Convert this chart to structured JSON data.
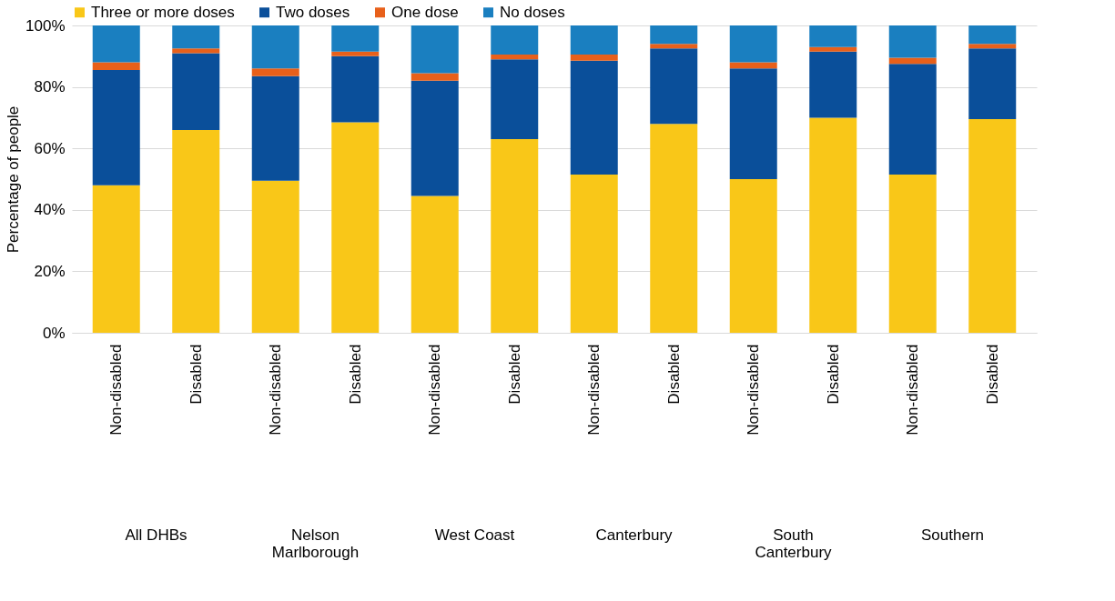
{
  "chart_data": {
    "type": "bar",
    "stacked": true,
    "ylabel": "Percentage of people",
    "categories": [
      "Non-disabled",
      "Disabled",
      "Non-disabled",
      "Disabled",
      "Non-disabled",
      "Disabled",
      "Non-disabled",
      "Disabled",
      "Non-disabled",
      "Disabled",
      "Non-disabled",
      "Disabled"
    ],
    "annotations": [
      "All DHBs",
      "Nelson\nMarlborough",
      "West Coast",
      "Canterbury",
      "South\nCanterbury",
      "Southern"
    ],
    "series": [
      {
        "name": "Three or more doses",
        "color": "#f9c718",
        "values": [
          48,
          66,
          49.5,
          68.5,
          44.5,
          63,
          51.5,
          68,
          50,
          70,
          51.5,
          69.5
        ]
      },
      {
        "name": "Two doses",
        "color": "#0a4f9a",
        "values": [
          37.5,
          25,
          34,
          21.5,
          37.5,
          26,
          37,
          24.5,
          36,
          21.5,
          36,
          23
        ]
      },
      {
        "name": "One dose",
        "color": "#e8601a",
        "values": [
          2.5,
          1.5,
          2.5,
          1.5,
          2.5,
          1.5,
          2,
          1.5,
          2,
          1.5,
          2,
          1.5
        ]
      },
      {
        "name": "No doses",
        "color": "#1a7fc0",
        "values": [
          12,
          7.5,
          14,
          8.5,
          15.5,
          9.5,
          9.5,
          6,
          12,
          7,
          10.5,
          6
        ]
      }
    ],
    "ylim": [
      0,
      100
    ],
    "yticks": [
      {
        "value": 0,
        "label": "0%"
      },
      {
        "value": 20,
        "label": "20%"
      },
      {
        "value": 40,
        "label": "40%"
      },
      {
        "value": 60,
        "label": "60%"
      },
      {
        "value": 80,
        "label": "80%"
      },
      {
        "value": 100,
        "label": "100%"
      }
    ],
    "grid": "y",
    "legend": "top"
  }
}
